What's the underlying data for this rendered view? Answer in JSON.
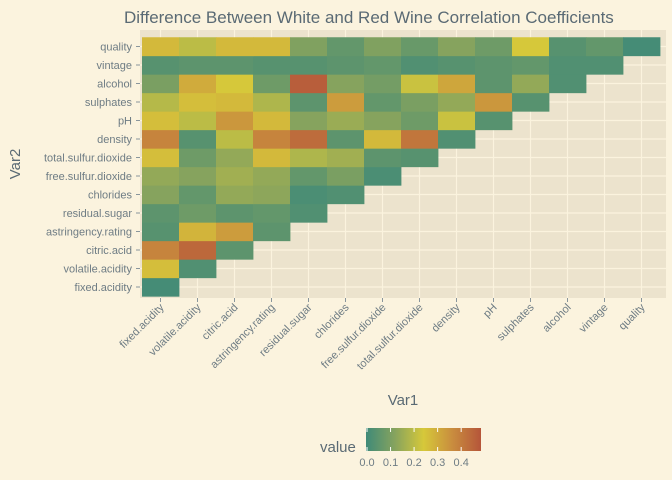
{
  "chart_data": {
    "type": "heatmap",
    "title": "Difference Between White and Red Wine Correlation Coefficients",
    "xlabel": "Var1",
    "ylabel": "Var2",
    "variables": [
      "fixed.acidity",
      "volatile.acidity",
      "citric.acid",
      "astringency.rating",
      "residual.sugar",
      "chlorides",
      "free.sulfur.dioxide",
      "total.sulfur.dioxide",
      "density",
      "pH",
      "sulphates",
      "alcohol",
      "vintage",
      "quality"
    ],
    "legend": {
      "title": "value",
      "placement": "bottom",
      "ticks": [
        "0.0",
        "0.1",
        "0.2",
        "0.3",
        "0.4"
      ],
      "range": [
        0,
        0.48
      ],
      "colors": [
        "#3f8a78",
        "#86a35e",
        "#d6c83a",
        "#c98d3e",
        "#b5553a"
      ]
    },
    "rows": [
      {
        "var": "fixed.acidity",
        "values": [
          0.01
        ]
      },
      {
        "var": "volatile.acidity",
        "values": [
          0.26,
          0.03
        ]
      },
      {
        "var": "citric.acid",
        "values": [
          0.38,
          0.44,
          0.05
        ]
      },
      {
        "var": "astringency.rating",
        "values": [
          0.04,
          0.28,
          0.33,
          0.05
        ]
      },
      {
        "var": "residual.sugar",
        "values": [
          0.05,
          0.08,
          0.05,
          0.06,
          0.03
        ]
      },
      {
        "var": "chlorides",
        "values": [
          0.12,
          0.06,
          0.14,
          0.13,
          0.02,
          0.03
        ]
      },
      {
        "var": "free.sulfur.dioxide",
        "values": [
          0.14,
          0.12,
          0.16,
          0.14,
          0.06,
          0.1,
          0.02
        ]
      },
      {
        "var": "total.sulfur.dioxide",
        "values": [
          0.26,
          0.08,
          0.14,
          0.27,
          0.18,
          0.16,
          0.05,
          0.04
        ]
      },
      {
        "var": "density",
        "values": [
          0.38,
          0.04,
          0.2,
          0.38,
          0.43,
          0.05,
          0.27,
          0.41,
          0.03
        ]
      },
      {
        "var": "pH",
        "values": [
          0.26,
          0.2,
          0.34,
          0.27,
          0.12,
          0.15,
          0.12,
          0.08,
          0.22,
          0.04
        ]
      },
      {
        "var": "sulphates",
        "values": [
          0.19,
          0.26,
          0.27,
          0.18,
          0.05,
          0.33,
          0.06,
          0.1,
          0.14,
          0.34,
          0.04
        ]
      },
      {
        "var": "alcohol",
        "values": [
          0.1,
          0.3,
          0.24,
          0.08,
          0.46,
          0.12,
          0.09,
          0.22,
          0.31,
          0.05,
          0.14,
          0.03
        ]
      },
      {
        "var": "vintage",
        "values": [
          0.04,
          0.05,
          0.05,
          0.04,
          0.04,
          0.05,
          0.06,
          0.03,
          0.04,
          0.05,
          0.06,
          0.03,
          0.03
        ]
      },
      {
        "var": "quality",
        "values": [
          0.27,
          0.2,
          0.27,
          0.27,
          0.11,
          0.06,
          0.11,
          0.07,
          0.12,
          0.08,
          0.24,
          0.04,
          0.06,
          0.01
        ]
      }
    ]
  }
}
